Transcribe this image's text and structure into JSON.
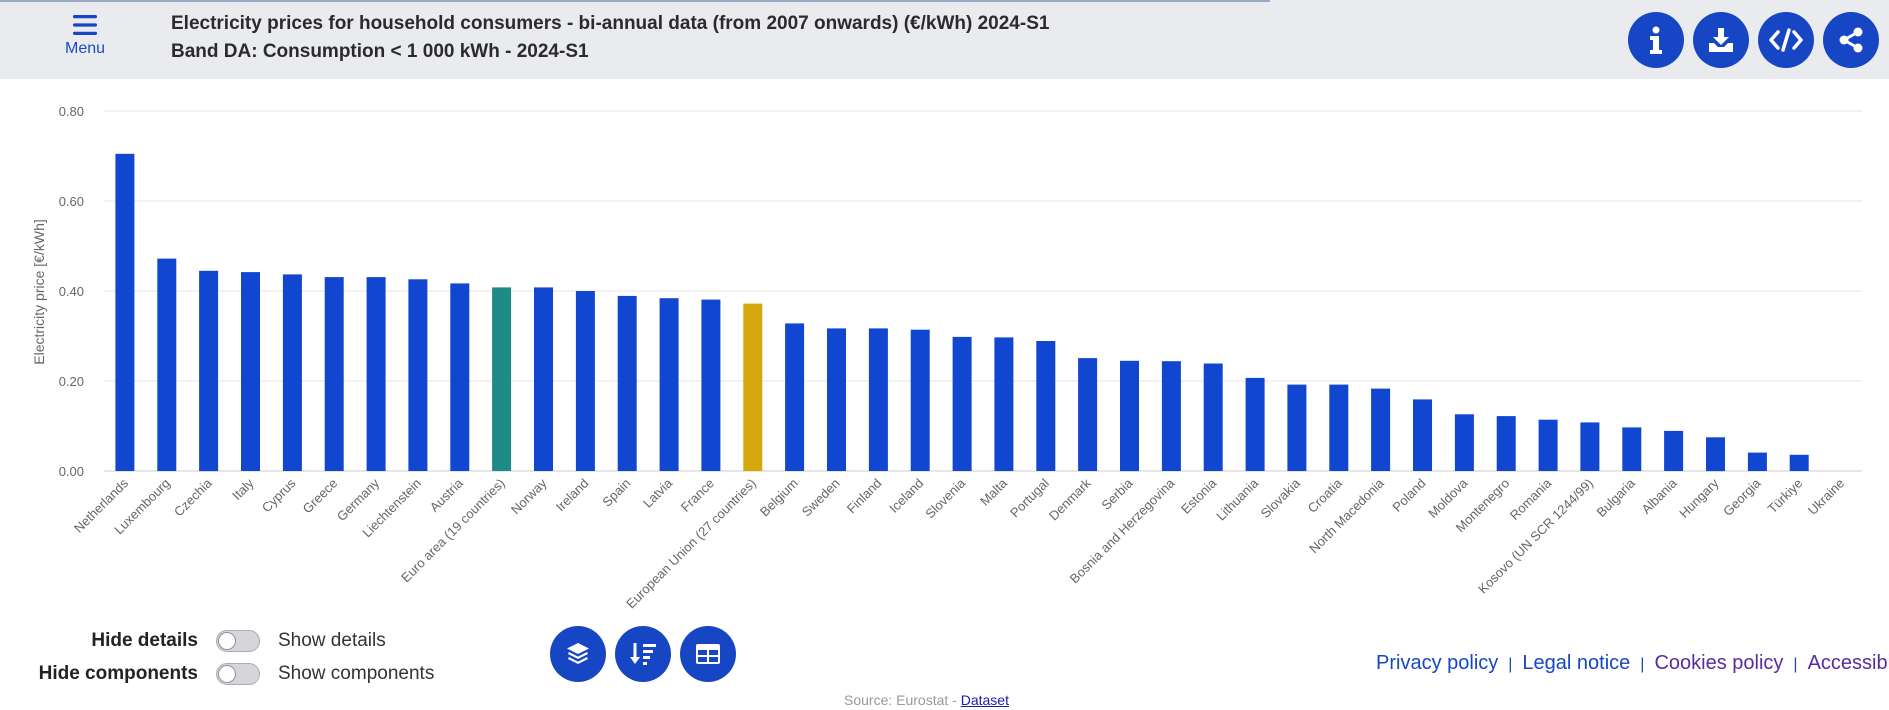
{
  "header": {
    "menu_label": "Menu",
    "title_line1": "Electricity prices for household consumers - bi-annual data (from 2007 onwards) (€/kWh) 2024-S1",
    "title_line2": "Band DA: Consumption < 1 000 kWh - 2024-S1",
    "action_icons": [
      "info-icon",
      "download-icon",
      "embed-code-icon",
      "share-icon"
    ]
  },
  "chart_data": {
    "type": "bar",
    "ylabel": "Electricity price [€/kWh]",
    "ylim": [
      0,
      0.8
    ],
    "yticks": [
      "0.00",
      "0.20",
      "0.40",
      "0.60",
      "0.80"
    ],
    "grid": true,
    "categories": [
      "Netherlands",
      "Luxembourg",
      "Czechia",
      "Italy",
      "Cyprus",
      "Greece",
      "Germany",
      "Liechtenstein",
      "Austria",
      "Euro area (19 countries)",
      "Norway",
      "Ireland",
      "Spain",
      "Latvia",
      "France",
      "European Union (27 countries)",
      "Belgium",
      "Sweden",
      "Finland",
      "Iceland",
      "Slovenia",
      "Malta",
      "Portugal",
      "Denmark",
      "Serbia",
      "Bosnia and Herzegovina",
      "Estonia",
      "Lithuania",
      "Slovakia",
      "Croatia",
      "North Macedonia",
      "Poland",
      "Moldova",
      "Montenegro",
      "Romania",
      "Kosovo (UN SCR 1244/99)",
      "Bulgaria",
      "Albania",
      "Hungary",
      "Georgia",
      "Türkiye",
      "Ukraine"
    ],
    "values": [
      0.705,
      0.472,
      0.445,
      0.442,
      0.437,
      0.431,
      0.431,
      0.426,
      0.417,
      0.408,
      0.408,
      0.4,
      0.389,
      0.384,
      0.381,
      0.372,
      0.328,
      0.317,
      0.317,
      0.314,
      0.298,
      0.297,
      0.289,
      0.251,
      0.245,
      0.244,
      0.239,
      0.207,
      0.192,
      0.192,
      0.183,
      0.159,
      0.126,
      0.122,
      0.114,
      0.108,
      0.097,
      0.089,
      0.075,
      0.041,
      0.036,
      0.0
    ],
    "colors": {
      "default": "#1146d0",
      "euro_area": "#1f8a86",
      "eu": "#d4a70c"
    },
    "highlight": {
      "Euro area (19 countries)": "euro_area",
      "European Union (27 countries)": "eu"
    }
  },
  "controls": {
    "details": {
      "hide_label": "Hide details",
      "show_label": "Show details"
    },
    "components": {
      "hide_label": "Hide components",
      "show_label": "Show components"
    },
    "chart_buttons": [
      "layers-icon",
      "sort-icon",
      "table-icon"
    ]
  },
  "footer": {
    "links": [
      "Privacy policy",
      "Legal notice",
      "Cookies policy",
      "Accessibility"
    ],
    "link_colors": [
      "#1646c4",
      "#1646c4",
      "#5b2a9e",
      "#5b2a9e"
    ],
    "source_prefix": "Source: Eurostat - ",
    "source_link": "Dataset"
  }
}
